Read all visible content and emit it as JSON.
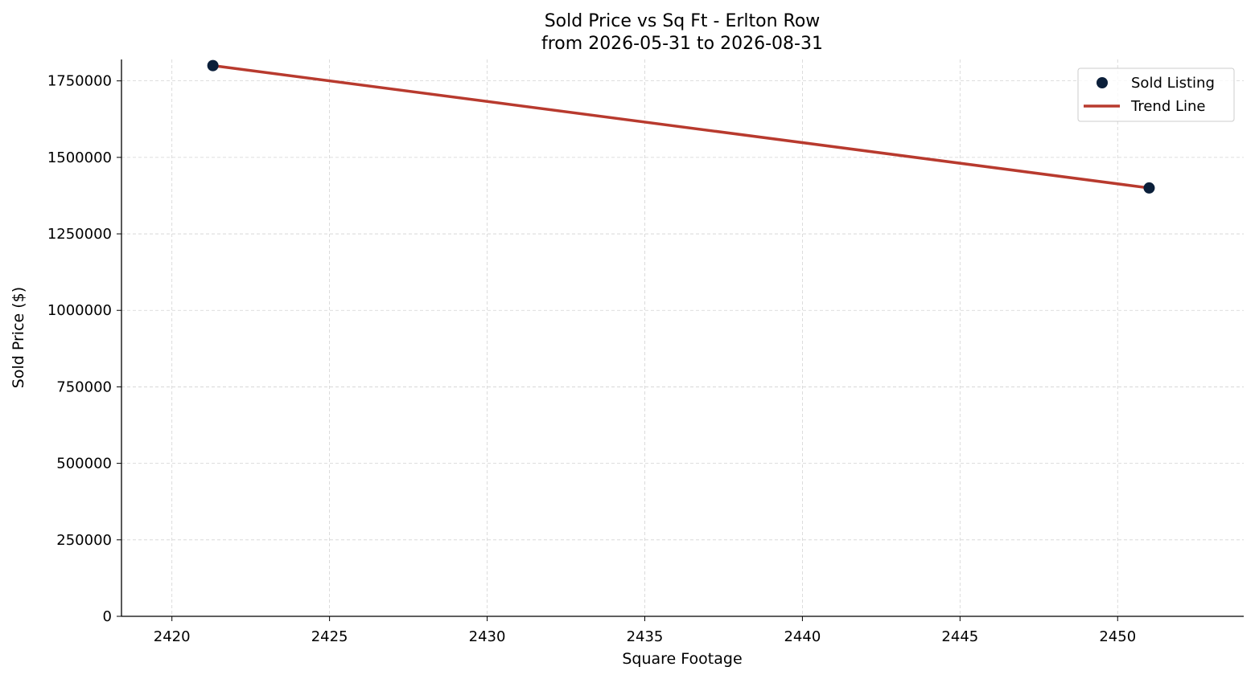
{
  "chart_data": {
    "type": "scatter",
    "title": "Sold Price vs Sq Ft - Erlton Row",
    "subtitle": "from 2026-05-31 to 2026-08-31",
    "xlabel": "Square Footage",
    "ylabel": "Sold Price ($)",
    "xlim": [
      2418.4,
      2454.0
    ],
    "ylim": [
      0,
      1820000
    ],
    "xticks": [
      2420,
      2425,
      2430,
      2435,
      2440,
      2445,
      2450
    ],
    "yticks": [
      0,
      250000,
      500000,
      750000,
      1000000,
      1250000,
      1500000,
      1750000
    ],
    "grid": true,
    "legend_position": "top-right",
    "series": [
      {
        "name": "Sold Listing",
        "kind": "scatter",
        "color": "#0b1f3a",
        "points": [
          {
            "x": 2421.3,
            "y": 1800000
          },
          {
            "x": 2451.0,
            "y": 1400000
          }
        ]
      },
      {
        "name": "Trend Line",
        "kind": "line",
        "color": "#b83a2e",
        "points": [
          {
            "x": 2421.3,
            "y": 1800000
          },
          {
            "x": 2451.0,
            "y": 1400000
          }
        ]
      }
    ]
  }
}
